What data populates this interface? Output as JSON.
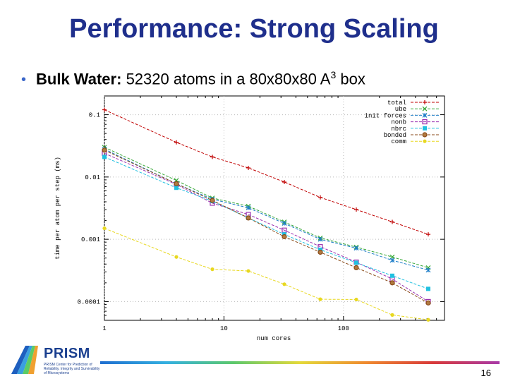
{
  "slide": {
    "title": "Performance: Strong Scaling",
    "bullet_bold": "Bulk Water:",
    "bullet_text": "52320 atoms in a 80x80x80 A",
    "bullet_sup": "3",
    "bullet_end": "box",
    "page_number": "16",
    "logo_name": "PRISM",
    "logo_sub": "PRISM Center for Prediction of Reliability, Integrity and Survivability of Microsystems"
  },
  "chart_data": {
    "type": "line",
    "title": "",
    "xlabel": "num cores",
    "ylabel": "time per atom per step (ms)",
    "xscale": "log",
    "yscale": "log",
    "xlim": [
      1,
      700
    ],
    "ylim": [
      5e-05,
      0.2
    ],
    "x_ticks": [
      1,
      10,
      100
    ],
    "x_tick_labels": [
      "1",
      "10",
      "100"
    ],
    "y_ticks": [
      0.0001,
      0.001,
      0.01,
      0.1
    ],
    "y_tick_labels": [
      "0.0001",
      "0.001",
      "0.01",
      "0.1"
    ],
    "x": [
      1,
      4,
      8,
      16,
      32,
      64,
      128,
      256,
      512
    ],
    "legend_position": "top-right",
    "series": [
      {
        "name": "total",
        "color": "#c00000",
        "marker": "plus",
        "values": [
          0.12,
          0.036,
          0.021,
          0.014,
          0.0083,
          0.0047,
          0.003,
          0.0019,
          0.0012
        ]
      },
      {
        "name": "ube",
        "color": "#38a838",
        "marker": "x",
        "values": [
          0.03,
          0.0088,
          0.0046,
          0.0034,
          0.0019,
          0.00105,
          0.00075,
          0.00052,
          0.00035
        ]
      },
      {
        "name": "init forces",
        "color": "#1e7ec8",
        "marker": "asterisk",
        "values": [
          0.028,
          0.0078,
          0.0044,
          0.0032,
          0.0018,
          0.001,
          0.00072,
          0.00046,
          0.00032
        ]
      },
      {
        "name": "nonb",
        "color": "#9a30b0",
        "marker": "square-open",
        "values": [
          0.024,
          0.0076,
          0.0038,
          0.0025,
          0.0014,
          0.00076,
          0.00043,
          0.00023,
          0.0001
        ]
      },
      {
        "name": "nbrc",
        "color": "#20c0e0",
        "marker": "square-filled",
        "values": [
          0.021,
          0.0067,
          0.0041,
          0.0022,
          0.0012,
          0.00068,
          0.00042,
          0.00026,
          0.00016
        ]
      },
      {
        "name": "bonded",
        "color": "#8a4a18",
        "marker": "circle",
        "values": [
          0.027,
          0.0078,
          0.0042,
          0.0022,
          0.0011,
          0.00062,
          0.00035,
          0.0002,
          9.5e-05
        ]
      },
      {
        "name": "comm",
        "color": "#e8d820",
        "marker": "dot",
        "values": [
          0.0015,
          0.00052,
          0.00033,
          0.00031,
          0.00019,
          0.000109,
          0.000108,
          6.1e-05,
          5.1e-05
        ]
      }
    ]
  }
}
